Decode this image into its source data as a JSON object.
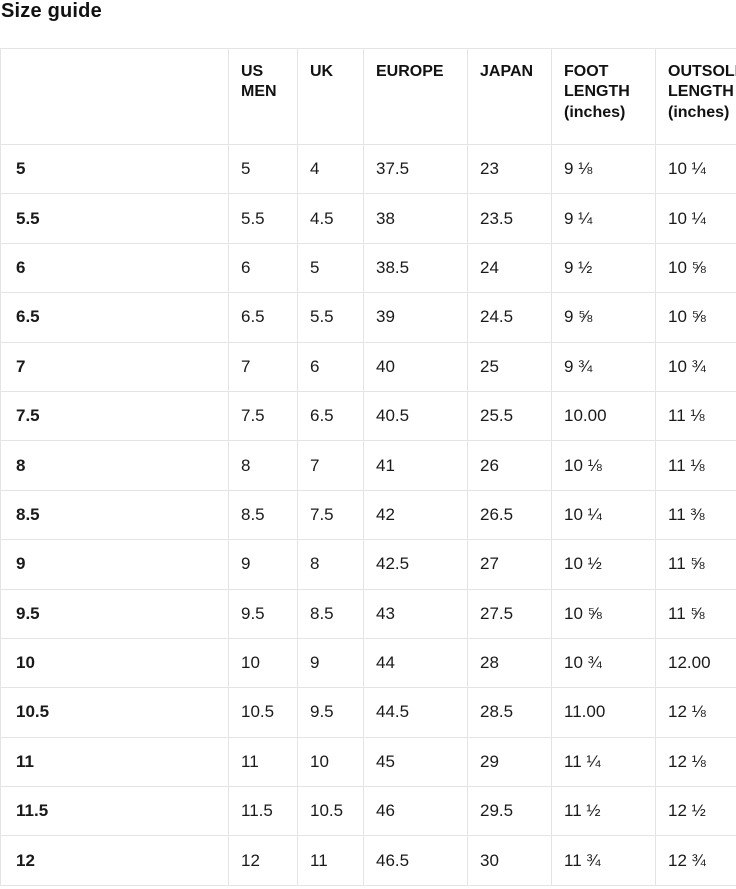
{
  "page": {
    "title": "Size guide"
  },
  "colors": {
    "background": "#ffffff",
    "border": "#e4e4e4",
    "text": "#1a1a1a",
    "heading": "#111111"
  },
  "table": {
    "column_keys": [
      "size",
      "us-men",
      "uk",
      "europe",
      "japan",
      "foot-length-inches",
      "outsole-length-inches"
    ],
    "headers": [
      "",
      "US MEN",
      "UK",
      "EUROPE",
      "JAPAN",
      "FOOT LENGTH (inches)",
      "OUTSOLE LENGTH (inches)"
    ],
    "rows": [
      [
        "5",
        "5",
        "4",
        "37.5",
        "23",
        "9 ⅛",
        "10 ¼"
      ],
      [
        "5.5",
        "5.5",
        "4.5",
        "38",
        "23.5",
        "9 ¼",
        "10 ¼"
      ],
      [
        "6",
        "6",
        "5",
        "38.5",
        "24",
        "9 ½",
        "10 ⅝"
      ],
      [
        "6.5",
        "6.5",
        "5.5",
        "39",
        "24.5",
        "9 ⅝",
        "10 ⅝"
      ],
      [
        "7",
        "7",
        "6",
        "40",
        "25",
        "9 ¾",
        "10 ¾"
      ],
      [
        "7.5",
        "7.5",
        "6.5",
        "40.5",
        "25.5",
        "10.00",
        "11 ⅛"
      ],
      [
        "8",
        "8",
        "7",
        "41",
        "26",
        "10 ⅛",
        "11 ⅛"
      ],
      [
        "8.5",
        "8.5",
        "7.5",
        "42",
        "26.5",
        "10 ¼",
        "11 ⅜"
      ],
      [
        "9",
        "9",
        "8",
        "42.5",
        "27",
        "10 ½",
        "11 ⅝"
      ],
      [
        "9.5",
        "9.5",
        "8.5",
        "43",
        "27.5",
        "10 ⅝",
        "11 ⅝"
      ],
      [
        "10",
        "10",
        "9",
        "44",
        "28",
        "10 ¾",
        "12.00"
      ],
      [
        "10.5",
        "10.5",
        "9.5",
        "44.5",
        "28.5",
        "11.00",
        "12 ⅛"
      ],
      [
        "11",
        "11",
        "10",
        "45",
        "29",
        "11 ¼",
        "12 ⅛"
      ],
      [
        "11.5",
        "11.5",
        "10.5",
        "46",
        "29.5",
        "11 ½",
        "12 ½"
      ],
      [
        "12",
        "12",
        "11",
        "46.5",
        "30",
        "11 ¾",
        "12 ¾"
      ]
    ]
  }
}
